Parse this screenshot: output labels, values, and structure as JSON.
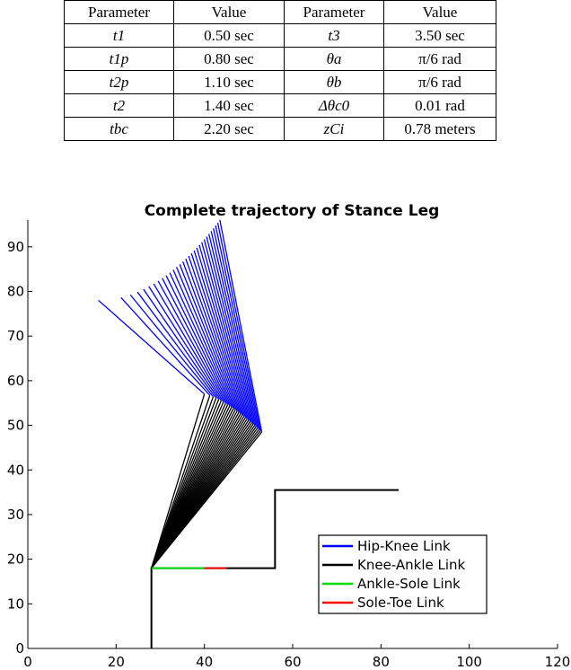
{
  "table": {
    "headers": [
      "Parameter",
      "Value",
      "Parameter",
      "Value"
    ],
    "rows": [
      {
        "p1": "t1",
        "v1": "0.50 sec",
        "p2": "t3",
        "v2": "3.50 sec"
      },
      {
        "p1": "t1p",
        "v1": "0.80 sec",
        "p2": "θa",
        "v2": "π/6 rad"
      },
      {
        "p1": "t2p",
        "v1": "1.10 sec",
        "p2": "θb",
        "v2": "π/6 rad"
      },
      {
        "p1": "t2",
        "v1": "1.40 sec",
        "p2": "Δθc0",
        "v2": "0.01 rad"
      },
      {
        "p1": "tbc",
        "v1": "2.20 sec",
        "p2": "zCi",
        "v2": "0.78 meters"
      }
    ]
  },
  "chart_data": {
    "type": "line",
    "title": "Complete trajectory of Stance Leg",
    "xlabel": "",
    "ylabel": "",
    "xlim": [
      0,
      120
    ],
    "ylim": [
      0,
      96
    ],
    "xticks": [
      0,
      20,
      40,
      60,
      80,
      100,
      120
    ],
    "yticks": [
      0,
      10,
      20,
      30,
      40,
      50,
      60,
      70,
      80,
      90
    ],
    "legend_position": "bottom-right",
    "grid": false,
    "series": [
      {
        "name": "Hip-Knee Link",
        "color": "#0000ff",
        "knee_point": [
          53,
          48.5
        ],
        "hip_points_start": [
          16,
          78
        ],
        "hip_points_end": [
          43.5,
          96
        ],
        "count": 30
      },
      {
        "name": "Knee-Ankle Link",
        "color": "#000000",
        "ankle_point": [
          28,
          18
        ],
        "knee_points_start": [
          40,
          57
        ],
        "knee_points_end": [
          53,
          48.5
        ],
        "count": 30
      },
      {
        "name": "Ankle-Sole Link",
        "color": "#00dd00",
        "points": [
          [
            28,
            18
          ],
          [
            40,
            18
          ]
        ]
      },
      {
        "name": "Sole-Toe Link",
        "color": "#ff0000",
        "points": [
          [
            40,
            18
          ],
          [
            45,
            18
          ]
        ]
      }
    ],
    "ground": {
      "color": "#000000",
      "points": [
        [
          28,
          0
        ],
        [
          28,
          18
        ],
        [
          56,
          18
        ],
        [
          56,
          35.5
        ],
        [
          84,
          35.5
        ]
      ]
    }
  }
}
